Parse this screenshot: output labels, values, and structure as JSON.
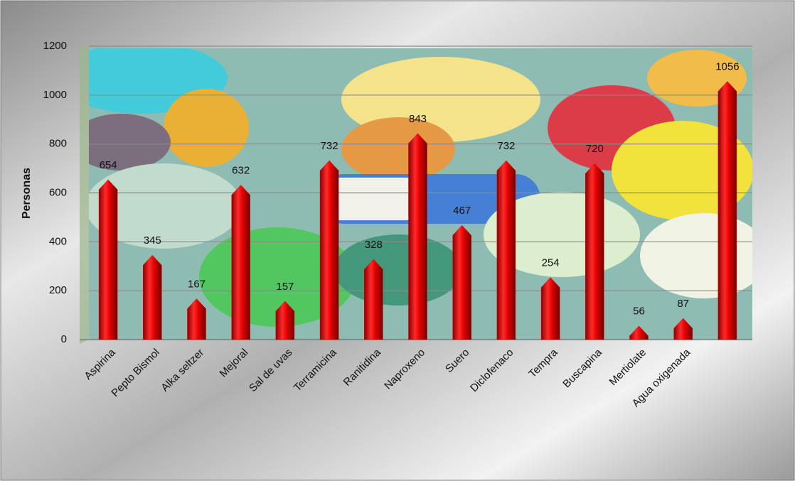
{
  "chart_data": {
    "type": "bar",
    "y_label": "Personas",
    "categories": [
      "Aspirina",
      "Pepto Bismol",
      "Alka seltzer",
      "Mejoral",
      "Sal de uvas",
      "Terramicina",
      "Ranitidina",
      "Naproxeno",
      "Suero",
      "Diclofenaco",
      "Tempra",
      "Buscapina",
      "Mertiolate",
      "Agua oxigenada",
      null
    ],
    "values": [
      654,
      345,
      167,
      632,
      157,
      732,
      328,
      843,
      467,
      732,
      254,
      720,
      56,
      87,
      1056
    ],
    "color": "#e00000",
    "ylim": [
      0,
      1200
    ],
    "yticks": [
      0,
      200,
      400,
      600,
      800,
      1000,
      1200
    ],
    "grid": true
  }
}
